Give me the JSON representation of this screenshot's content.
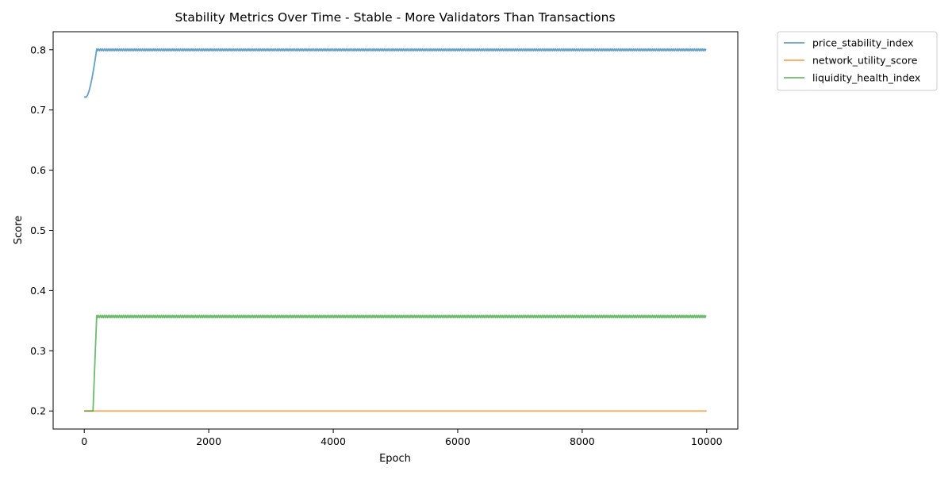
{
  "chart_data": {
    "type": "line",
    "title": "Stability Metrics Over Time - Stable - More Validators Than Transactions",
    "xlabel": "Epoch",
    "ylabel": "Score",
    "xlim": [
      -500,
      10500
    ],
    "ylim": [
      0.17,
      0.83
    ],
    "x_ticks": [
      0,
      2000,
      4000,
      6000,
      8000,
      10000
    ],
    "x_tick_labels": [
      "0",
      "2000",
      "4000",
      "6000",
      "8000",
      "10000"
    ],
    "y_ticks": [
      0.2,
      0.3,
      0.4,
      0.5,
      0.6,
      0.7,
      0.8
    ],
    "y_tick_labels": [
      "0.2",
      "0.3",
      "0.4",
      "0.5",
      "0.6",
      "0.7",
      "0.8"
    ],
    "grid": false,
    "legend_position": "outside-top-right",
    "series": [
      {
        "name": "price_stability_index",
        "color": "#1f77b4",
        "x": [
          0,
          25,
          50,
          75,
          100,
          125,
          150,
          175,
          200,
          10000
        ],
        "y": [
          0.722,
          0.721,
          0.724,
          0.731,
          0.741,
          0.753,
          0.768,
          0.784,
          0.8,
          0.8
        ],
        "oscillation": {
          "start": 200,
          "end": 10000,
          "center": 0.8,
          "amplitude": 0.0015
        }
      },
      {
        "name": "network_utility_score",
        "color": "#ff7f0e",
        "x": [
          0,
          10000
        ],
        "y": [
          0.2,
          0.2
        ]
      },
      {
        "name": "liquidity_health_index",
        "color": "#2ca02c",
        "x": [
          0,
          140,
          200,
          10000
        ],
        "y": [
          0.2,
          0.2,
          0.357,
          0.357
        ],
        "oscillation": {
          "start": 200,
          "end": 10000,
          "center": 0.357,
          "amplitude": 0.002
        }
      }
    ]
  }
}
